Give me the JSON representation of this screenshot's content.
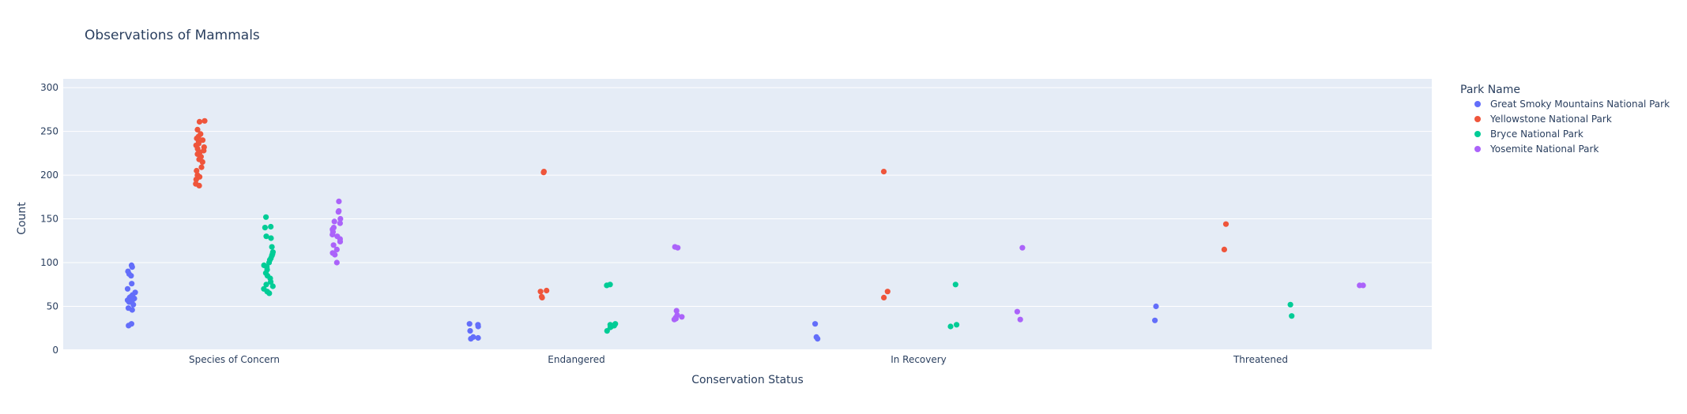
{
  "chart_data": {
    "type": "scatter",
    "title": "Observations of Mammals",
    "xlabel": "Conservation Status",
    "ylabel": "Count",
    "categories": [
      "Species of Concern",
      "Endangered",
      "In Recovery",
      "Threatened"
    ],
    "ylim": [
      0,
      310
    ],
    "yticks": [
      0,
      50,
      100,
      150,
      200,
      250,
      300
    ],
    "grid": true,
    "legend_title": "Park Name",
    "legend_position": "right",
    "series": [
      {
        "name": "Great Smoky Mountains National Park",
        "color": "#636efa",
        "points": [
          [
            "Species of Concern",
            97
          ],
          [
            "Species of Concern",
            95
          ],
          [
            "Species of Concern",
            90
          ],
          [
            "Species of Concern",
            87
          ],
          [
            "Species of Concern",
            85
          ],
          [
            "Species of Concern",
            76
          ],
          [
            "Species of Concern",
            70
          ],
          [
            "Species of Concern",
            66
          ],
          [
            "Species of Concern",
            63
          ],
          [
            "Species of Concern",
            61
          ],
          [
            "Species of Concern",
            60
          ],
          [
            "Species of Concern",
            59
          ],
          [
            "Species of Concern",
            58
          ],
          [
            "Species of Concern",
            57
          ],
          [
            "Species of Concern",
            56
          ],
          [
            "Species of Concern",
            55
          ],
          [
            "Species of Concern",
            52
          ],
          [
            "Species of Concern",
            48
          ],
          [
            "Species of Concern",
            46
          ],
          [
            "Species of Concern",
            30
          ],
          [
            "Species of Concern",
            28
          ],
          [
            "Endangered",
            30
          ],
          [
            "Endangered",
            29
          ],
          [
            "Endangered",
            27
          ],
          [
            "Endangered",
            22
          ],
          [
            "Endangered",
            15
          ],
          [
            "Endangered",
            14
          ],
          [
            "Endangered",
            13
          ],
          [
            "In Recovery",
            30
          ],
          [
            "In Recovery",
            15
          ],
          [
            "In Recovery",
            13
          ],
          [
            "Threatened",
            50
          ],
          [
            "Threatened",
            34
          ]
        ]
      },
      {
        "name": "Yellowstone National Park",
        "color": "#ef553b",
        "points": [
          [
            "Species of Concern",
            262
          ],
          [
            "Species of Concern",
            261
          ],
          [
            "Species of Concern",
            252
          ],
          [
            "Species of Concern",
            247
          ],
          [
            "Species of Concern",
            244
          ],
          [
            "Species of Concern",
            242
          ],
          [
            "Species of Concern",
            240
          ],
          [
            "Species of Concern",
            238
          ],
          [
            "Species of Concern",
            236
          ],
          [
            "Species of Concern",
            234
          ],
          [
            "Species of Concern",
            232
          ],
          [
            "Species of Concern",
            230
          ],
          [
            "Species of Concern",
            228
          ],
          [
            "Species of Concern",
            226
          ],
          [
            "Species of Concern",
            224
          ],
          [
            "Species of Concern",
            221
          ],
          [
            "Species of Concern",
            218
          ],
          [
            "Species of Concern",
            215
          ],
          [
            "Species of Concern",
            209
          ],
          [
            "Species of Concern",
            205
          ],
          [
            "Species of Concern",
            200
          ],
          [
            "Species of Concern",
            198
          ],
          [
            "Species of Concern",
            195
          ],
          [
            "Species of Concern",
            190
          ],
          [
            "Species of Concern",
            188
          ],
          [
            "Endangered",
            204
          ],
          [
            "Endangered",
            203
          ],
          [
            "Endangered",
            68
          ],
          [
            "Endangered",
            67
          ],
          [
            "Endangered",
            61
          ],
          [
            "Endangered",
            60
          ],
          [
            "In Recovery",
            204
          ],
          [
            "In Recovery",
            67
          ],
          [
            "In Recovery",
            60
          ],
          [
            "Threatened",
            144
          ],
          [
            "Threatened",
            115
          ]
        ]
      },
      {
        "name": "Bryce National Park",
        "color": "#00cc96",
        "points": [
          [
            "Species of Concern",
            152
          ],
          [
            "Species of Concern",
            141
          ],
          [
            "Species of Concern",
            140
          ],
          [
            "Species of Concern",
            130
          ],
          [
            "Species of Concern",
            128
          ],
          [
            "Species of Concern",
            118
          ],
          [
            "Species of Concern",
            112
          ],
          [
            "Species of Concern",
            110
          ],
          [
            "Species of Concern",
            108
          ],
          [
            "Species of Concern",
            105
          ],
          [
            "Species of Concern",
            103
          ],
          [
            "Species of Concern",
            100
          ],
          [
            "Species of Concern",
            97
          ],
          [
            "Species of Concern",
            95
          ],
          [
            "Species of Concern",
            92
          ],
          [
            "Species of Concern",
            88
          ],
          [
            "Species of Concern",
            85
          ],
          [
            "Species of Concern",
            82
          ],
          [
            "Species of Concern",
            78
          ],
          [
            "Species of Concern",
            75
          ],
          [
            "Species of Concern",
            73
          ],
          [
            "Species of Concern",
            70
          ],
          [
            "Species of Concern",
            67
          ],
          [
            "Species of Concern",
            65
          ],
          [
            "Endangered",
            75
          ],
          [
            "Endangered",
            74
          ],
          [
            "Endangered",
            30
          ],
          [
            "Endangered",
            29
          ],
          [
            "Endangered",
            28
          ],
          [
            "Endangered",
            27
          ],
          [
            "Endangered",
            26
          ],
          [
            "Endangered",
            22
          ],
          [
            "In Recovery",
            75
          ],
          [
            "In Recovery",
            29
          ],
          [
            "In Recovery",
            27
          ],
          [
            "Threatened",
            52
          ],
          [
            "Threatened",
            39
          ]
        ]
      },
      {
        "name": "Yosemite National Park",
        "color": "#ab63fa",
        "points": [
          [
            "Species of Concern",
            170
          ],
          [
            "Species of Concern",
            159
          ],
          [
            "Species of Concern",
            158
          ],
          [
            "Species of Concern",
            150
          ],
          [
            "Species of Concern",
            147
          ],
          [
            "Species of Concern",
            145
          ],
          [
            "Species of Concern",
            140
          ],
          [
            "Species of Concern",
            138
          ],
          [
            "Species of Concern",
            135
          ],
          [
            "Species of Concern",
            132
          ],
          [
            "Species of Concern",
            130
          ],
          [
            "Species of Concern",
            127
          ],
          [
            "Species of Concern",
            124
          ],
          [
            "Species of Concern",
            120
          ],
          [
            "Species of Concern",
            115
          ],
          [
            "Species of Concern",
            111
          ],
          [
            "Species of Concern",
            109
          ],
          [
            "Species of Concern",
            100
          ],
          [
            "Endangered",
            118
          ],
          [
            "Endangered",
            117
          ],
          [
            "Endangered",
            45
          ],
          [
            "Endangered",
            40
          ],
          [
            "Endangered",
            38
          ],
          [
            "Endangered",
            37
          ],
          [
            "Endangered",
            36
          ],
          [
            "Endangered",
            35
          ],
          [
            "In Recovery",
            117
          ],
          [
            "In Recovery",
            44
          ],
          [
            "In Recovery",
            35
          ],
          [
            "Threatened",
            74
          ],
          [
            "Threatened",
            74
          ]
        ]
      }
    ]
  }
}
